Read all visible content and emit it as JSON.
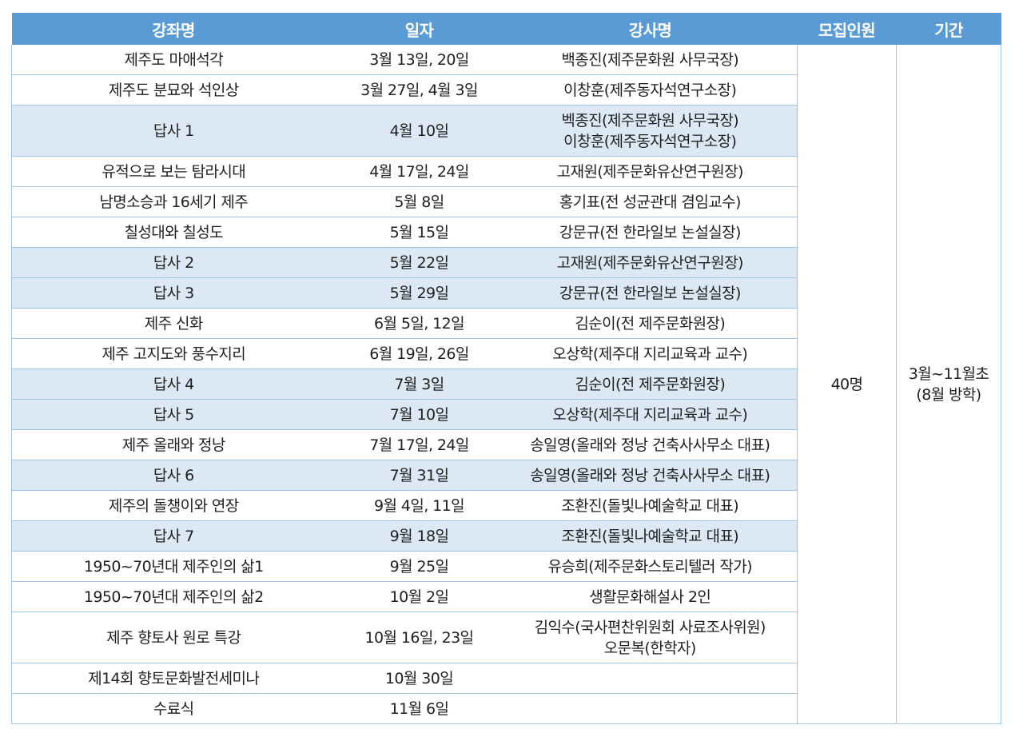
{
  "headers": [
    "강좌명",
    "일자",
    "강사명",
    "모집인원",
    "기간"
  ],
  "capacity": "40명",
  "period": [
    "3월~11월초",
    "(8월 방학)"
  ],
  "rows": [
    {
      "course": "제주도 마애석각",
      "date": "3월 13일, 20일",
      "instructor": [
        "백종진(제주문화원 사무국장)"
      ],
      "shaded": false
    },
    {
      "course": "제주도 분묘와 석인상",
      "date": "3월 27일, 4월 3일",
      "instructor": [
        "이창훈(제주동자석연구소장)"
      ],
      "shaded": false
    },
    {
      "course": "답사 1",
      "date": "4월 10일",
      "instructor": [
        "벡종진(제주문화원 사무국장)",
        "이창훈(제주동자석연구소장)"
      ],
      "shaded": true
    },
    {
      "course": "유적으로 보는 탐라시대",
      "date": "4월 17일, 24일",
      "instructor": [
        "고재원(제주문화유산연구원장)"
      ],
      "shaded": false
    },
    {
      "course": "남명소승과 16세기 제주",
      "date": "5월 8일",
      "instructor": [
        "홍기표(전 성균관대 겸임교수)"
      ],
      "shaded": false
    },
    {
      "course": "칠성대와 칠성도",
      "date": "5월 15일",
      "instructor": [
        "강문규(전 한라일보 논설실장)"
      ],
      "shaded": false
    },
    {
      "course": "답사 2",
      "date": "5월 22일",
      "instructor": [
        "고재원(제주문화유산연구원장)"
      ],
      "shaded": true
    },
    {
      "course": "답사 3",
      "date": "5월 29일",
      "instructor": [
        "강문규(전 한라일보 논설실장)"
      ],
      "shaded": true
    },
    {
      "course": "제주 신화",
      "date": "6월 5일, 12일",
      "instructor": [
        "김순이(전 제주문화원장)"
      ],
      "shaded": false
    },
    {
      "course": "제주 고지도와 풍수지리",
      "date": "6월 19일, 26일",
      "instructor": [
        "오상학(제주대 지리교육과 교수)"
      ],
      "shaded": false
    },
    {
      "course": "답사 4",
      "date": "7월 3일",
      "instructor": [
        "김순이(전 제주문화원장)"
      ],
      "shaded": true
    },
    {
      "course": "답사 5",
      "date": "7월 10일",
      "instructor": [
        "오상학(제주대 지리교육과 교수)"
      ],
      "shaded": true
    },
    {
      "course": "제주 올래와 정낭",
      "date": "7월 17일, 24일",
      "instructor": [
        "송일영(올래와 정낭 건축사사무소 대표)"
      ],
      "shaded": false
    },
    {
      "course": "답사 6",
      "date": "7월 31일",
      "instructor": [
        "송일영(올래와 정낭 건축사사무소 대표)"
      ],
      "shaded": true
    },
    {
      "course": "제주의 돌챙이와 연장",
      "date": "9월 4일, 11일",
      "instructor": [
        "조환진(돌빛나예술학교 대표)"
      ],
      "shaded": false
    },
    {
      "course": "답사 7",
      "date": "9월 18일",
      "instructor": [
        "조환진(돌빛나예술학교 대표)"
      ],
      "shaded": true
    },
    {
      "course": "1950~70년대 제주인의 삶1",
      "date": "9월 25일",
      "instructor": [
        "유승희(제주문화스토리텔러 작가)"
      ],
      "shaded": false
    },
    {
      "course": "1950~70년대 제주인의 삶2",
      "date": "10월 2일",
      "instructor": [
        "생활문화해설사 2인"
      ],
      "shaded": false
    },
    {
      "course": "제주 향토사 원로 특강",
      "date": "10월 16일, 23일",
      "instructor": [
        "김익수(국사편찬위원회 사료조사위원)",
        "오문복(한학자)"
      ],
      "shaded": false
    },
    {
      "course": "제14회 향토문화발전세미나",
      "date": "10월 30일",
      "instructor": [],
      "shaded": false
    },
    {
      "course": "수료식",
      "date": "11월 6일",
      "instructor": [],
      "shaded": false
    }
  ],
  "colors": {
    "header_bg": "#5b9bd5",
    "header_text": "#ffffff",
    "shade_bg": "#dde8f5",
    "border": "#9dc3e6"
  }
}
